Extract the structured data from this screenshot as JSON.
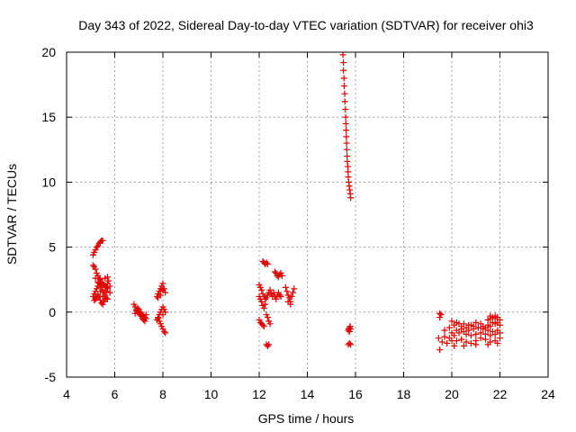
{
  "chart_data": {
    "type": "scatter",
    "title": "Day 343 of 2022, Sidereal Day-to-day VTEC variation (SDTVAR) for receiver ohi3",
    "xlabel": "GPS time / hours",
    "ylabel": "SDTVAR / TECUs",
    "xlim": [
      4,
      24
    ],
    "ylim": [
      -5,
      20
    ],
    "xticks": [
      4,
      6,
      8,
      10,
      12,
      14,
      16,
      18,
      20,
      22,
      24
    ],
    "yticks": [
      -5,
      0,
      5,
      10,
      15,
      20
    ],
    "xtick_labels": [
      "4",
      "6",
      "8",
      "10",
      "12",
      "14",
      "16",
      "18",
      "20",
      "22",
      "24"
    ],
    "ytick_labels": [
      "-5",
      "0",
      "5",
      "10",
      "15",
      "20"
    ],
    "grid": true,
    "marker": "plus",
    "color": "#e00000",
    "series": [
      {
        "name": "ohi3",
        "points": [
          [
            5.1,
            4.4
          ],
          [
            5.15,
            4.6
          ],
          [
            5.2,
            4.8
          ],
          [
            5.25,
            5.0
          ],
          [
            5.3,
            5.1
          ],
          [
            5.35,
            5.3
          ],
          [
            5.4,
            5.4
          ],
          [
            5.45,
            5.5
          ],
          [
            5.5,
            5.5
          ],
          [
            5.1,
            3.6
          ],
          [
            5.15,
            3.5
          ],
          [
            5.2,
            3.3
          ],
          [
            5.25,
            3.0
          ],
          [
            5.3,
            2.8
          ],
          [
            5.35,
            2.6
          ],
          [
            5.4,
            2.5
          ],
          [
            5.45,
            2.3
          ],
          [
            5.5,
            2.2
          ],
          [
            5.55,
            2.1
          ],
          [
            5.6,
            2.0
          ],
          [
            5.65,
            1.9
          ],
          [
            5.7,
            1.8
          ],
          [
            5.1,
            1.2
          ],
          [
            5.15,
            1.4
          ],
          [
            5.2,
            1.6
          ],
          [
            5.25,
            1.8
          ],
          [
            5.3,
            2.0
          ],
          [
            5.35,
            2.2
          ],
          [
            5.4,
            2.1
          ],
          [
            5.45,
            1.9
          ],
          [
            5.5,
            1.7
          ],
          [
            5.55,
            1.5
          ],
          [
            5.6,
            1.3
          ],
          [
            5.65,
            1.1
          ],
          [
            5.7,
            1.0
          ],
          [
            5.15,
            0.9
          ],
          [
            5.2,
            1.0
          ],
          [
            5.25,
            1.1
          ],
          [
            5.3,
            1.3
          ],
          [
            5.35,
            1.2
          ],
          [
            5.4,
            0.9
          ],
          [
            5.45,
            0.7
          ],
          [
            5.5,
            0.6
          ],
          [
            5.55,
            0.8
          ],
          [
            5.6,
            1.0
          ],
          [
            5.65,
            1.6
          ],
          [
            5.7,
            2.2
          ],
          [
            5.75,
            2.4
          ],
          [
            5.8,
            2.0
          ],
          [
            5.8,
            1.5
          ],
          [
            5.2,
            2.6
          ],
          [
            5.3,
            2.3
          ],
          [
            5.4,
            1.6
          ],
          [
            5.5,
            1.2
          ],
          [
            5.6,
            2.6
          ],
          [
            5.7,
            2.7
          ],
          [
            6.8,
            0.6
          ],
          [
            6.85,
            0.4
          ],
          [
            6.9,
            0.2
          ],
          [
            6.95,
            0.0
          ],
          [
            7.0,
            -0.1
          ],
          [
            7.05,
            -0.2
          ],
          [
            7.1,
            -0.3
          ],
          [
            7.15,
            -0.5
          ],
          [
            7.2,
            -0.6
          ],
          [
            7.25,
            -0.7
          ],
          [
            7.3,
            -0.5
          ],
          [
            7.3,
            -0.2
          ],
          [
            6.85,
            -0.1
          ],
          [
            6.9,
            0.1
          ],
          [
            6.95,
            0.3
          ],
          [
            7.0,
            0.2
          ],
          [
            7.05,
            0.0
          ],
          [
            7.1,
            -0.1
          ],
          [
            7.15,
            -0.2
          ],
          [
            7.2,
            -0.3
          ],
          [
            7.25,
            -0.4
          ],
          [
            7.75,
            1.2
          ],
          [
            7.8,
            1.4
          ],
          [
            7.85,
            1.6
          ],
          [
            7.9,
            1.8
          ],
          [
            7.95,
            2.0
          ],
          [
            8.0,
            2.2
          ],
          [
            8.05,
            1.8
          ],
          [
            8.1,
            1.5
          ],
          [
            7.8,
            1.1
          ],
          [
            7.9,
            1.3
          ],
          [
            8.0,
            1.7
          ],
          [
            7.75,
            -0.6
          ],
          [
            7.8,
            -0.4
          ],
          [
            7.85,
            -0.2
          ],
          [
            7.9,
            0.0
          ],
          [
            7.95,
            0.2
          ],
          [
            8.0,
            0.4
          ],
          [
            8.05,
            0.2
          ],
          [
            8.1,
            0.0
          ],
          [
            7.85,
            -0.7
          ],
          [
            7.9,
            -0.9
          ],
          [
            7.95,
            -1.1
          ],
          [
            8.0,
            -1.3
          ],
          [
            8.05,
            -1.5
          ],
          [
            8.1,
            -1.6
          ],
          [
            7.8,
            -0.5
          ],
          [
            8.0,
            -0.2
          ],
          [
            12.0,
            2.1
          ],
          [
            12.05,
            1.9
          ],
          [
            12.1,
            1.7
          ],
          [
            12.15,
            1.4
          ],
          [
            12.2,
            1.2
          ],
          [
            12.25,
            1.0
          ],
          [
            12.3,
            1.1
          ],
          [
            12.35,
            1.3
          ],
          [
            12.4,
            1.5
          ],
          [
            12.45,
            1.7
          ],
          [
            12.5,
            1.4
          ],
          [
            12.55,
            1.2
          ],
          [
            12.0,
            1.2
          ],
          [
            12.05,
            1.0
          ],
          [
            12.1,
            0.8
          ],
          [
            12.15,
            0.5
          ],
          [
            12.2,
            0.3
          ],
          [
            12.25,
            0.6
          ],
          [
            12.15,
            3.9
          ],
          [
            12.2,
            3.8
          ],
          [
            12.25,
            3.7
          ],
          [
            12.3,
            3.8
          ],
          [
            12.35,
            3.7
          ],
          [
            12.65,
            3.1
          ],
          [
            12.7,
            3.0
          ],
          [
            12.75,
            2.8
          ],
          [
            12.8,
            2.7
          ],
          [
            12.85,
            2.9
          ],
          [
            12.9,
            3.0
          ],
          [
            12.95,
            2.8
          ],
          [
            12.6,
            1.5
          ],
          [
            12.65,
            1.2
          ],
          [
            12.7,
            1.0
          ],
          [
            12.75,
            1.3
          ],
          [
            12.8,
            1.5
          ],
          [
            12.85,
            1.3
          ],
          [
            12.9,
            1.2
          ],
          [
            13.1,
            1.9
          ],
          [
            13.15,
            1.6
          ],
          [
            13.2,
            1.3
          ],
          [
            13.25,
            1.1
          ],
          [
            13.3,
            0.8
          ],
          [
            13.35,
            1.2
          ],
          [
            13.4,
            1.5
          ],
          [
            13.45,
            1.8
          ],
          [
            13.2,
            0.8
          ],
          [
            13.3,
            0.6
          ],
          [
            12.0,
            -0.6
          ],
          [
            12.05,
            -0.8
          ],
          [
            12.1,
            -0.9
          ],
          [
            12.15,
            -1.0
          ],
          [
            12.2,
            -1.1
          ],
          [
            12.35,
            -0.4
          ],
          [
            12.4,
            -0.7
          ],
          [
            12.45,
            -0.9
          ],
          [
            12.3,
            -0.2
          ],
          [
            12.3,
            -2.5
          ],
          [
            12.35,
            -2.6
          ],
          [
            12.4,
            -2.5
          ],
          [
            15.48,
            19.8
          ],
          [
            15.5,
            19.2
          ],
          [
            15.5,
            18.6
          ],
          [
            15.52,
            18.0
          ],
          [
            15.53,
            17.4
          ],
          [
            15.55,
            16.8
          ],
          [
            15.56,
            16.2
          ],
          [
            15.58,
            15.6
          ],
          [
            15.59,
            15.0
          ],
          [
            15.6,
            14.5
          ],
          [
            15.61,
            14.0
          ],
          [
            15.62,
            13.5
          ],
          [
            15.63,
            13.0
          ],
          [
            15.64,
            12.5
          ],
          [
            15.65,
            12.0
          ],
          [
            15.66,
            11.6
          ],
          [
            15.68,
            11.2
          ],
          [
            15.69,
            10.8
          ],
          [
            15.7,
            10.4
          ],
          [
            15.72,
            10.0
          ],
          [
            15.74,
            9.7
          ],
          [
            15.76,
            9.4
          ],
          [
            15.78,
            9.1
          ],
          [
            15.8,
            8.8
          ],
          [
            15.7,
            -1.4
          ],
          [
            15.72,
            -1.3
          ],
          [
            15.75,
            -1.2
          ],
          [
            15.78,
            -1.1
          ],
          [
            15.8,
            -1.3
          ],
          [
            15.75,
            -1.5
          ],
          [
            15.7,
            -2.5
          ],
          [
            15.75,
            -2.4
          ],
          [
            15.8,
            -2.5
          ],
          [
            19.5,
            -0.1
          ],
          [
            19.55,
            -0.2
          ],
          [
            19.5,
            -0.4
          ],
          [
            19.45,
            -2.0
          ],
          [
            19.5,
            -2.9
          ],
          [
            19.6,
            -2.3
          ],
          [
            19.7,
            -1.9
          ],
          [
            19.9,
            -2.0
          ],
          [
            20.1,
            -1.8
          ],
          [
            20.3,
            -1.6
          ],
          [
            20.5,
            -1.5
          ],
          [
            20.7,
            -1.4
          ],
          [
            20.9,
            -1.3
          ],
          [
            21.1,
            -1.2
          ],
          [
            21.3,
            -1.1
          ],
          [
            21.5,
            -1.0
          ],
          [
            21.7,
            -0.8
          ],
          [
            21.8,
            -0.5
          ],
          [
            21.6,
            -0.3
          ],
          [
            21.9,
            -0.8
          ],
          [
            19.7,
            -1.4
          ],
          [
            19.9,
            -1.2
          ],
          [
            20.1,
            -1.0
          ],
          [
            20.3,
            -0.9
          ],
          [
            20.5,
            -0.9
          ],
          [
            20.7,
            -1.0
          ],
          [
            20.9,
            -1.1
          ],
          [
            21.1,
            -1.2
          ],
          [
            21.3,
            -1.3
          ],
          [
            21.5,
            -1.4
          ],
          [
            21.7,
            -1.5
          ],
          [
            21.9,
            -1.4
          ],
          [
            19.8,
            -2.4
          ],
          [
            20.0,
            -2.2
          ],
          [
            20.2,
            -2.2
          ],
          [
            20.4,
            -2.1
          ],
          [
            20.6,
            -2.3
          ],
          [
            20.8,
            -2.4
          ],
          [
            21.0,
            -2.2
          ],
          [
            21.2,
            -2.0
          ],
          [
            21.4,
            -2.1
          ],
          [
            21.6,
            -2.3
          ],
          [
            21.8,
            -2.2
          ],
          [
            22.0,
            -2.0
          ],
          [
            20.0,
            -1.6
          ],
          [
            20.2,
            -1.4
          ],
          [
            20.4,
            -1.3
          ],
          [
            20.6,
            -1.7
          ],
          [
            20.8,
            -1.8
          ],
          [
            21.0,
            -1.7
          ],
          [
            21.2,
            -1.6
          ],
          [
            21.4,
            -1.7
          ],
          [
            21.6,
            -1.8
          ],
          [
            21.8,
            -1.7
          ],
          [
            22.0,
            -1.6
          ],
          [
            20.0,
            -0.7
          ],
          [
            20.2,
            -0.8
          ],
          [
            20.4,
            -1.1
          ],
          [
            20.6,
            -1.2
          ],
          [
            20.8,
            -1.0
          ],
          [
            21.0,
            -0.8
          ],
          [
            21.2,
            -0.9
          ],
          [
            21.4,
            -1.2
          ],
          [
            21.6,
            -1.1
          ],
          [
            21.8,
            -0.9
          ],
          [
            22.0,
            -1.0
          ],
          [
            21.5,
            -0.6
          ],
          [
            21.6,
            -0.5
          ],
          [
            21.7,
            -0.4
          ],
          [
            21.8,
            -0.3
          ],
          [
            21.9,
            -0.4
          ],
          [
            22.0,
            -0.6
          ],
          [
            20.1,
            -2.6
          ],
          [
            20.5,
            -2.6
          ],
          [
            21.0,
            -2.5
          ],
          [
            21.5,
            -2.5
          ],
          [
            21.9,
            -2.4
          ]
        ]
      }
    ]
  }
}
